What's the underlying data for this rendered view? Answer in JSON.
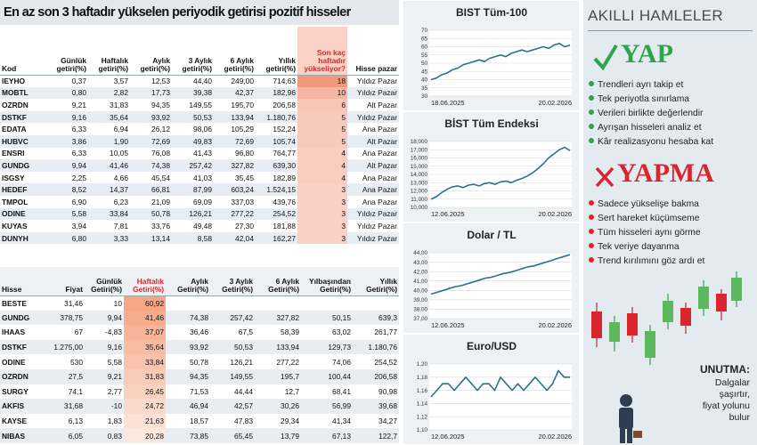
{
  "table1": {
    "title": "En az son 3 haftadır yükselen periyodik getirisi pozitif hisseler",
    "headers": [
      "Kod",
      "Günlük getiri(%)",
      "Haftalık getiri(%)",
      "Aylık getiri(%)",
      "3 Aylık getiri(%)",
      "6 Aylık getiri(%)",
      "Yıllık getiri(%)",
      "Son kaç haftadır yükseliyor?",
      "Hisse pazar"
    ],
    "rows": [
      [
        "IEYHO",
        "0,37",
        "3,57",
        "12,53",
        "44,40",
        "249,00",
        "714,63",
        "18",
        "Yıldız Pazar"
      ],
      [
        "MOBTL",
        "0,80",
        "2,82",
        "17,73",
        "39,38",
        "42,37",
        "182,96",
        "10",
        "Yıldız Pazar"
      ],
      [
        "OZRDN",
        "9,21",
        "31,83",
        "94,35",
        "149,55",
        "195,70",
        "206,58",
        "6",
        "Alt Pazar"
      ],
      [
        "DSTKF",
        "9,16",
        "35,64",
        "93,92",
        "50,53",
        "133,94",
        "1.180,76",
        "5",
        "Yıldız Pazar"
      ],
      [
        "EDATA",
        "6,33",
        "6,94",
        "26,12",
        "98,06",
        "105,29",
        "152,24",
        "5",
        "Ana Pazar"
      ],
      [
        "HUBVC",
        "3,86",
        "1,90",
        "72,69",
        "49,83",
        "72,69",
        "105,74",
        "5",
        "Alt Pazar"
      ],
      [
        "ENSRI",
        "6,33",
        "10,05",
        "76,08",
        "41,43",
        "96,80",
        "764,77",
        "4",
        "Ana Pazar"
      ],
      [
        "GUNDG",
        "9,94",
        "41,46",
        "74,38",
        "257,42",
        "327,82",
        "639,30",
        "4",
        "Alt Pazar"
      ],
      [
        "ISGSY",
        "2,25",
        "4,66",
        "45,54",
        "41,03",
        "35,45",
        "182,89",
        "4",
        "Ana Pazar"
      ],
      [
        "HEDEF",
        "8,52",
        "14,37",
        "66,81",
        "87,99",
        "603,24",
        "1.524,15",
        "3",
        "Ana Pazar"
      ],
      [
        "TMPOL",
        "6,90",
        "6,23",
        "21,09",
        "69,09",
        "337,03",
        "439,76",
        "3",
        "Ana Pazar"
      ],
      [
        "ODINE",
        "5,58",
        "33,84",
        "50,78",
        "126,21",
        "277,22",
        "254,52",
        "3",
        "Yıldız Pazar"
      ],
      [
        "KUYAS",
        "3,94",
        "7,81",
        "33,76",
        "49,48",
        "27,30",
        "181,88",
        "3",
        "Yıldız Pazar"
      ],
      [
        "DUNYH",
        "6,80",
        "3,33",
        "13,14",
        "8,58",
        "42,04",
        "162,27",
        "3",
        "Yıldız Pazar"
      ]
    ]
  },
  "table2": {
    "headers": [
      "Hisse",
      "Fiyat",
      "Günlük Getiri(%)",
      "Haftalık Getiri(%)",
      "Aylık Getiri(%)",
      "3 Aylık Getiri(%)",
      "6 Aylık Getiri(%)",
      "Yılbaşından Getiri(%)",
      "Yıllık Getiri(%)"
    ],
    "rows": [
      [
        "BESTE",
        "31,46",
        "10",
        "60,92",
        null,
        null,
        null,
        null,
        null
      ],
      [
        "GUNDG",
        "378,75",
        "9,94",
        "41,46",
        "74,38",
        "257,42",
        "327,82",
        "50,15",
        "639,3"
      ],
      [
        "IHAAS",
        "67",
        "-4,83",
        "37,07",
        "36,46",
        "67,5",
        "58,39",
        "63,02",
        "261,77"
      ],
      [
        "DSTKF",
        "1.275,00",
        "9,16",
        "35,64",
        "93,92",
        "50,53",
        "133,94",
        "129,73",
        "1.180,76"
      ],
      [
        "ODINE",
        "530",
        "5,58",
        "33,84",
        "50,78",
        "126,21",
        "277,22",
        "74,06",
        "254,52"
      ],
      [
        "OZRDN",
        "27,5",
        "9,21",
        "31,83",
        "94,35",
        "149,55",
        "195,7",
        "100,44",
        "206,58"
      ],
      [
        "SURGY",
        "74,1",
        "2,77",
        "26,45",
        "71,53",
        "44,44",
        "12,7",
        "68,41",
        "90,98"
      ],
      [
        "AKFIS",
        "31,68",
        "-10",
        "24,72",
        "46,94",
        "42,57",
        "30,26",
        "56,99",
        "39,68"
      ],
      [
        "KAYSE",
        "6,13",
        "1,83",
        "21,63",
        "18,57",
        "47,83",
        "29,34",
        "41,34",
        "34,27"
      ],
      [
        "NIBAS",
        "6,05",
        "0,83",
        "20,28",
        "73,85",
        "65,45",
        "13,79",
        "67,13",
        "122,7"
      ]
    ]
  },
  "charts": [
    {
      "type": "line",
      "title": "BIST Tüm-100",
      "x_labels": [
        "18.06.2025",
        "20.02.2026"
      ],
      "color": "#2a7195",
      "ylim": [
        30,
        70
      ],
      "yticks": [
        30,
        35,
        40,
        45,
        50,
        55,
        60,
        65,
        70
      ],
      "grid": true,
      "values": [
        40,
        41,
        43,
        44,
        46,
        47,
        49,
        50,
        51,
        52,
        51,
        53,
        54,
        55,
        54,
        56,
        57,
        58,
        57,
        58,
        59,
        60,
        59,
        61,
        62,
        60,
        61
      ]
    },
    {
      "type": "line",
      "title": "BİST Tüm Endeksi",
      "x_labels": [
        "12.06.2025",
        "20.02.2026"
      ],
      "color": "#2a7195",
      "ylim": [
        10000,
        18000
      ],
      "yticks": [
        {
          "value": 10000,
          "label": "10,000"
        },
        {
          "value": 11000,
          "label": "11,000"
        },
        {
          "value": 12000,
          "label": "12,000"
        },
        {
          "value": 13000,
          "label": "13,000"
        },
        {
          "value": 14000,
          "label": "14,000"
        },
        {
          "value": 15000,
          "label": "15,000"
        },
        {
          "value": 16000,
          "label": "16,000"
        },
        {
          "value": 17000,
          "label": "17,000"
        },
        {
          "value": 18000,
          "label": "18,000"
        }
      ],
      "grid": true,
      "values": [
        11000,
        11300,
        11800,
        12200,
        12500,
        12600,
        12400,
        12700,
        12800,
        12600,
        12900,
        13000,
        12800,
        13100,
        13200,
        13000,
        13300,
        13500,
        13800,
        14200,
        14700,
        15300,
        16000,
        16500,
        17000,
        17300,
        16900
      ]
    },
    {
      "type": "line",
      "title": "Dolar / TL",
      "x_labels": [
        "12.06.2025",
        "20.02.2026"
      ],
      "color": "#2a7195",
      "ylim": [
        37,
        44
      ],
      "yticks": [
        {
          "value": 37,
          "label": "37,00"
        },
        {
          "value": 38,
          "label": "38,00"
        },
        {
          "value": 39,
          "label": "39,00"
        },
        {
          "value": 40,
          "label": "40,00"
        },
        {
          "value": 41,
          "label": "41,00"
        },
        {
          "value": 42,
          "label": "42,00"
        },
        {
          "value": 43,
          "label": "43,00"
        },
        {
          "value": 44,
          "label": "44,00"
        }
      ],
      "grid": true,
      "values": [
        39.6,
        39.8,
        40.0,
        40.2,
        40.4,
        40.5,
        40.7,
        40.9,
        41.1,
        41.3,
        41.4,
        41.6,
        41.8,
        41.9,
        42.1,
        42.3,
        42.5,
        42.6,
        42.8,
        43.0,
        43.2,
        43.4,
        43.6,
        43.8
      ]
    },
    {
      "type": "line",
      "title": "Euro/USD",
      "x_labels": [
        "12.06.2025",
        "20.02.2026"
      ],
      "color": "#2a7195",
      "ylim": [
        1.1,
        1.2
      ],
      "yticks": [
        {
          "value": 1.1,
          "label": "1,10"
        },
        {
          "value": 1.12,
          "label": "1,12"
        },
        {
          "value": 1.14,
          "label": "1,14"
        },
        {
          "value": 1.16,
          "label": "1,16"
        },
        {
          "value": 1.18,
          "label": "1,18"
        },
        {
          "value": 1.2,
          "label": "1,20"
        }
      ],
      "grid": true,
      "values": [
        1.15,
        1.16,
        1.17,
        1.17,
        1.16,
        1.17,
        1.18,
        1.17,
        1.16,
        1.17,
        1.17,
        1.16,
        1.18,
        1.17,
        1.16,
        1.17,
        1.16,
        1.17,
        1.18,
        1.17,
        1.16,
        1.17,
        1.19,
        1.18,
        1.18
      ]
    }
  ],
  "panel": {
    "title": "AKILLI HAMLELER",
    "do_title": "YAP",
    "do_items": [
      "Trendleri ayrı takip et",
      "Tek periyotla sınırlama",
      "Verileri birlikte değerlendir",
      "Ayrışan hisseleri analiz et",
      "Kâr realizasyonu hesaba kat"
    ],
    "dont_title": "YAPMA",
    "dont_items": [
      "Sadece yükselişe bakma",
      "Sert hareket küçümseme",
      "Tüm hisseleri aynı görme",
      "Tek veriye dayanma",
      "Trend kırılımını göz ardı et"
    ],
    "note_title": "UNUTMA:",
    "note_lines": [
      "Dalgalar",
      "şaşırtır,",
      "fiyat yolunu",
      "bulur"
    ]
  }
}
